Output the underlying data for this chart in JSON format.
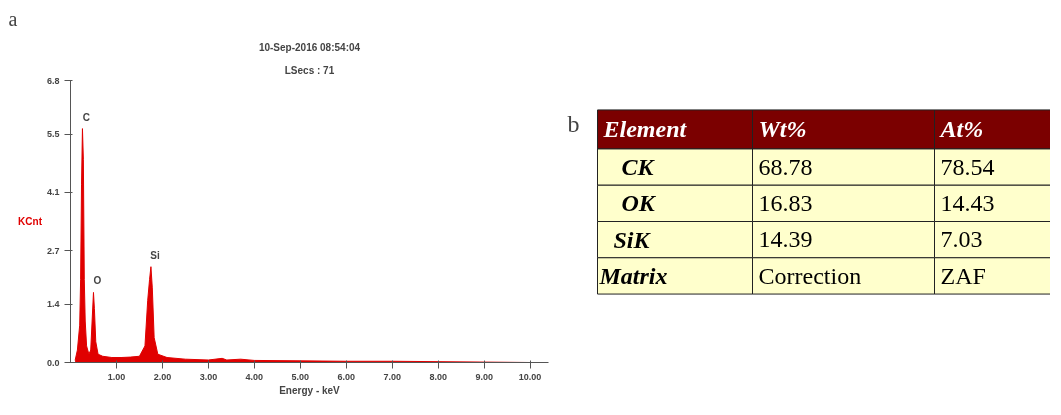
{
  "chart_data": [
    {
      "type": "area",
      "title": "a",
      "subtitle": "10-Sep-2016 08:54:04",
      "xlabel": "Energy - keV",
      "ylabel": "KCnt",
      "annotations": [
        "LSecs : 71",
        {
          "text": "C",
          "x": 0.26,
          "y": 5.64
        },
        {
          "text": "O",
          "x": 0.5,
          "y": 1.69
        },
        {
          "text": "Si",
          "x": 1.75,
          "y": 2.31
        }
      ],
      "x": [
        0.1,
        0.15,
        0.2,
        0.22,
        0.24,
        0.26,
        0.28,
        0.3,
        0.32,
        0.35,
        0.4,
        0.44,
        0.47,
        0.5,
        0.52,
        0.55,
        0.6,
        0.7,
        0.9,
        1.1,
        1.3,
        1.5,
        1.62,
        1.68,
        1.72,
        1.75,
        1.78,
        1.82,
        1.9,
        2.1,
        2.5,
        3.0,
        3.3,
        3.4,
        3.7,
        4.0,
        5.0,
        6.0,
        7.0,
        8.0,
        9.0,
        10.0
      ],
      "series": [
        {
          "color": "#e00000",
          "values": [
            0.05,
            0.3,
            0.9,
            2.0,
            4.3,
            5.64,
            4.9,
            2.0,
            1.0,
            0.4,
            0.2,
            0.3,
            1.0,
            1.69,
            1.3,
            0.5,
            0.2,
            0.15,
            0.12,
            0.12,
            0.13,
            0.15,
            0.4,
            1.5,
            2.0,
            2.31,
            1.8,
            0.6,
            0.2,
            0.12,
            0.08,
            0.06,
            0.1,
            0.06,
            0.08,
            0.05,
            0.04,
            0.03,
            0.03,
            0.02,
            0.01,
            0.0
          ]
        }
      ],
      "xlim": [
        0,
        10.4
      ],
      "ylim": [
        0,
        6.8
      ],
      "xticks": [
        {
          "value": 1,
          "label": "1.00"
        },
        {
          "value": 2,
          "label": "2.00"
        },
        {
          "value": 3,
          "label": "3.00"
        },
        {
          "value": 4,
          "label": "4.00"
        },
        {
          "value": 5,
          "label": "5.00"
        },
        {
          "value": 6,
          "label": "6.00"
        },
        {
          "value": 7,
          "label": "7.00"
        },
        {
          "value": 8,
          "label": "8.00"
        },
        {
          "value": 9,
          "label": "9.00"
        },
        {
          "value": 10,
          "label": "10.00"
        }
      ],
      "yticks": [
        {
          "value": 0,
          "label": "0.0"
        },
        1.4,
        2.7,
        4.1,
        5.5,
        6.8
      ],
      "grid": false
    },
    {
      "type": "other",
      "title": "b",
      "categories": [
        "Element",
        "Wt%",
        "At%"
      ],
      "y_categories": [
        "CK",
        "OK",
        "SiK",
        "Matrix"
      ],
      "cell_labels": [
        [
          "68.78",
          "78.54"
        ],
        [
          "16.83",
          "14.43"
        ],
        [
          "14.39",
          "7.03"
        ],
        [
          "Correction",
          "ZAF"
        ]
      ],
      "colors": [
        "#7b0000",
        "#7b0000",
        "#7b0000",
        "#ffffcc",
        "#ffffcc",
        "#ffffcc",
        "#ffffcc",
        "#ffffcc",
        "#ffffcc",
        "#ffffcc",
        "#ffffcc",
        "#ffffcc",
        "#ffffcc",
        "#ffffcc",
        "#ffffcc"
      ]
    }
  ]
}
